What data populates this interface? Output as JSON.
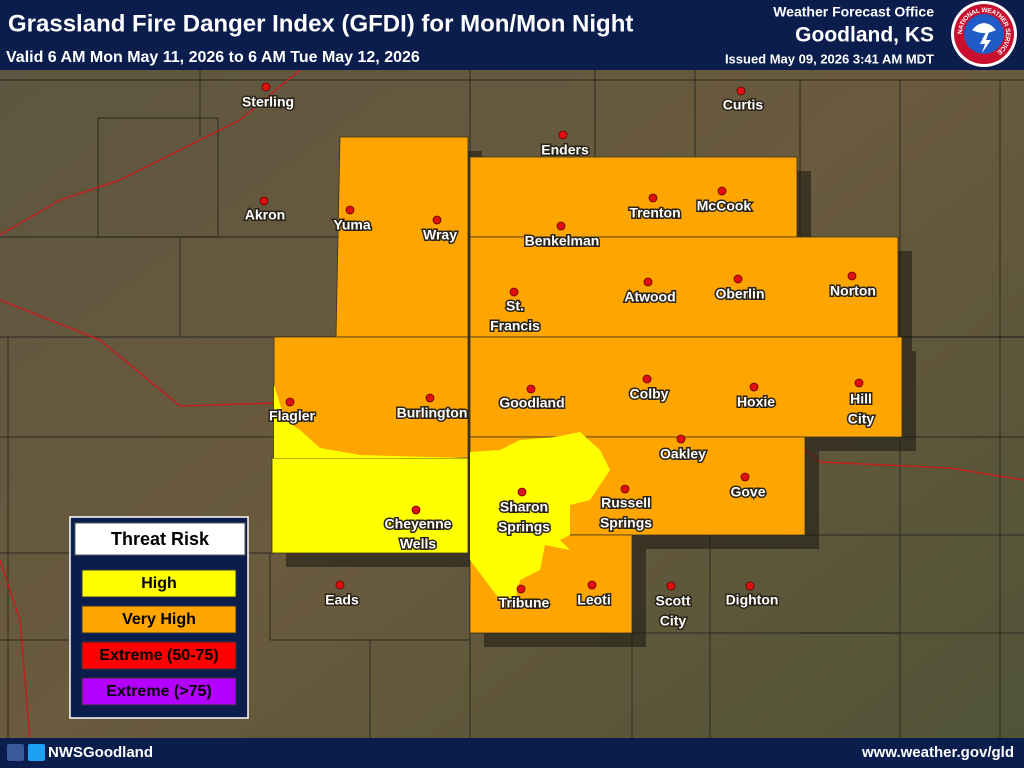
{
  "header": {
    "title": "Grassland Fire Danger Index (GFDI) for Mon/Mon Night",
    "subtitle": "Valid 6 AM Mon May 11, 2026 to 6 AM Tue May 12, 2026",
    "office": "Weather Forecast Office",
    "location": "Goodland, KS",
    "issued": "Issued May 09, 2026 3:41 AM MDT",
    "logo_text": "NATIONAL WEATHER SERVICE"
  },
  "legend": {
    "title": "Threat Risk",
    "items": [
      {
        "label": "High",
        "color": "#ffff00"
      },
      {
        "label": "Very High",
        "color": "#ffa500"
      },
      {
        "label": "Extreme (50-75)",
        "color": "#ff0000"
      },
      {
        "label": "Extreme (>75)",
        "color": "#b400ff"
      }
    ]
  },
  "cities": [
    {
      "lines": [
        "Sterling"
      ]
    },
    {
      "lines": [
        "Curtis"
      ]
    },
    {
      "lines": [
        "Enders"
      ]
    },
    {
      "lines": [
        "Akron"
      ]
    },
    {
      "lines": [
        "Yuma"
      ]
    },
    {
      "lines": [
        "Wray"
      ]
    },
    {
      "lines": [
        "Trenton"
      ]
    },
    {
      "lines": [
        "McCook"
      ]
    },
    {
      "lines": [
        "Benkelman"
      ]
    },
    {
      "lines": [
        "St.",
        "Francis"
      ]
    },
    {
      "lines": [
        "Atwood"
      ]
    },
    {
      "lines": [
        "Oberlin"
      ]
    },
    {
      "lines": [
        "Norton"
      ]
    },
    {
      "lines": [
        "Flagler"
      ]
    },
    {
      "lines": [
        "Burlington"
      ]
    },
    {
      "lines": [
        "Goodland"
      ]
    },
    {
      "lines": [
        "Colby"
      ]
    },
    {
      "lines": [
        "Hoxie"
      ]
    },
    {
      "lines": [
        "Hill",
        "City"
      ]
    },
    {
      "lines": [
        "Oakley"
      ]
    },
    {
      "lines": [
        "Cheyenne",
        "Wells"
      ]
    },
    {
      "lines": [
        "Sharon",
        "Springs"
      ]
    },
    {
      "lines": [
        "Russell",
        "Springs"
      ]
    },
    {
      "lines": [
        "Gove"
      ]
    },
    {
      "lines": [
        "Eads"
      ]
    },
    {
      "lines": [
        "Tribune"
      ]
    },
    {
      "lines": [
        "Leoti"
      ]
    },
    {
      "lines": [
        "Scott",
        "City"
      ]
    },
    {
      "lines": [
        "Dighton"
      ]
    }
  ],
  "footer": {
    "social": "NWSGoodland",
    "url": "www.weather.gov/gld"
  }
}
